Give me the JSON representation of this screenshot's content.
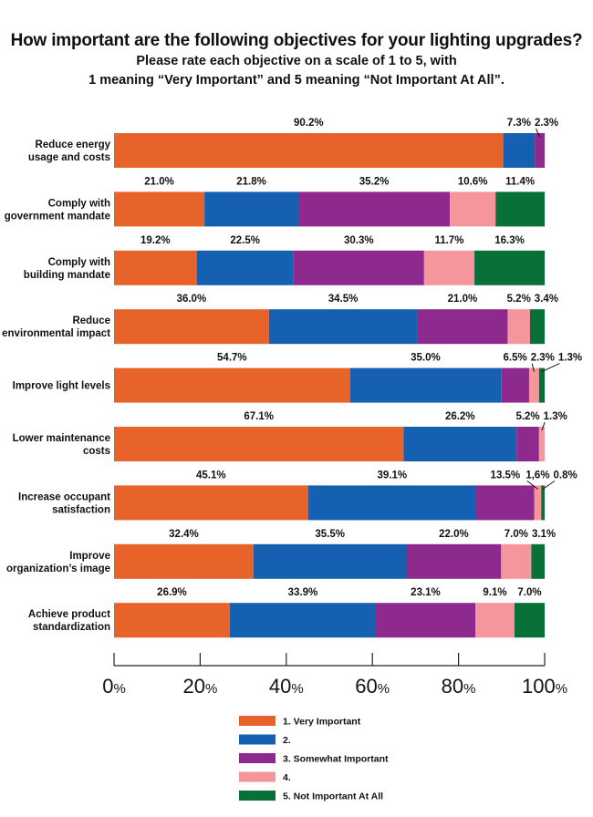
{
  "chart_data": {
    "type": "bar",
    "orientation": "horizontal",
    "stacked": true,
    "title": "How important are the following objectives for your lighting upgrades?",
    "subtitle_line1": "Please rate each objective on a scale of 1 to 5, with",
    "subtitle_line2": "1 meaning “Very Important” and 5 meaning “Not Important At All”.",
    "categories": [
      [
        "Reduce energy",
        "usage and costs"
      ],
      [
        "Comply with",
        "government mandate"
      ],
      [
        "Comply with",
        "building mandate"
      ],
      [
        "Reduce",
        "environmental impact"
      ],
      [
        "Improve light levels"
      ],
      [
        "Lower maintenance",
        "costs"
      ],
      [
        "Increase occupant",
        "satisfaction"
      ],
      [
        "Improve",
        "organization’s image"
      ],
      [
        "Achieve product",
        "standardization"
      ]
    ],
    "series": [
      {
        "name": "1. Very Important",
        "color": "#e8632a",
        "values": [
          90.2,
          21.0,
          19.2,
          36.0,
          54.7,
          67.1,
          45.1,
          32.4,
          26.9
        ]
      },
      {
        "name": "2.",
        "color": "#1560b0",
        "values": [
          7.3,
          21.8,
          22.5,
          34.5,
          35.0,
          26.2,
          39.1,
          35.5,
          33.9
        ]
      },
      {
        "name": "3. Somewhat Important",
        "color": "#8e2a8e",
        "values": [
          2.3,
          35.2,
          30.3,
          21.0,
          6.5,
          5.2,
          13.5,
          22.0,
          23.1
        ]
      },
      {
        "name": "4.",
        "color": "#f4969c",
        "values": [
          null,
          10.6,
          11.7,
          5.2,
          2.3,
          1.3,
          1.6,
          7.0,
          9.1
        ]
      },
      {
        "name": "5. Not Important At All",
        "color": "#087038",
        "values": [
          null,
          11.4,
          16.3,
          3.4,
          1.3,
          null,
          0.8,
          3.1,
          7.0
        ]
      }
    ],
    "value_labels": [
      [
        "90.2%",
        "7.3%",
        "2.3%",
        null,
        null
      ],
      [
        "21.0%",
        "21.8%",
        "35.2%",
        "10.6%",
        "11.4%"
      ],
      [
        "19.2%",
        "22.5%",
        "30.3%",
        "11.7%",
        "16.3%"
      ],
      [
        "36.0%",
        "34.5%",
        "21.0%",
        "5.2%",
        "3.4%"
      ],
      [
        "54.7%",
        "35.0%",
        "6.5%",
        "2.3%",
        "1.3%"
      ],
      [
        "67.1%",
        "26.2%",
        "5.2%",
        "1.3%",
        null
      ],
      [
        "45.1%",
        "39.1%",
        "13.5%",
        "1,6%",
        "0.8%"
      ],
      [
        "32.4%",
        "35.5%",
        "22.0%",
        "7.0%",
        "3.1%"
      ],
      [
        "26.9%",
        "33.9%",
        "23.1%",
        "9.1%",
        "7.0%"
      ]
    ],
    "x_ticks": [
      0,
      20,
      40,
      60,
      80,
      100
    ],
    "x_tick_suffix": "%",
    "xlim": [
      0,
      100
    ]
  }
}
